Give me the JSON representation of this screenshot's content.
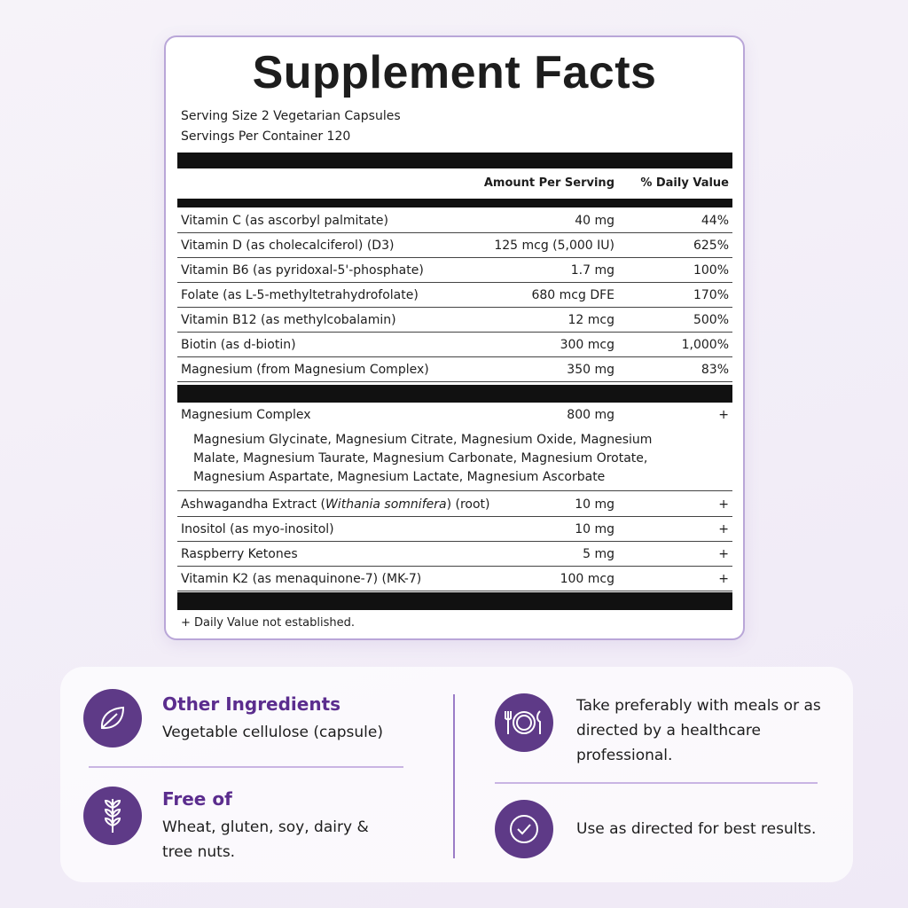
{
  "label": {
    "title": "Supplement Facts",
    "serving_size": "Serving Size 2 Vegetarian Capsules",
    "servings_per_container": "Servings Per Container 120",
    "headers": [
      "Amount Per Serving",
      "% Daily Value"
    ],
    "rows": [
      [
        "Vitamin C (as ascorbyl palmitate)",
        "40 mg",
        "44%"
      ],
      [
        "Vitamin D (as cholecalciferol) (D3)",
        "125 mcg (5,000 IU)",
        "625%"
      ],
      [
        "Vitamin B6 (as pyridoxal-5'-phosphate)",
        "1.7 mg",
        "100%"
      ],
      [
        "Folate (as L-5-methyltetrahydrofolate)",
        "680 mcg DFE",
        "170%"
      ],
      [
        "Vitamin B12 (as methylcobalamin)",
        "12 mcg",
        "500%"
      ],
      [
        "Biotin (as d-biotin)",
        "300 mcg",
        "1,000%"
      ],
      [
        "Magnesium (from Magnesium Complex)",
        "350 mg",
        "83%"
      ]
    ],
    "complex": {
      "name": "Magnesium Complex",
      "amount": "800 mg",
      "dv": "+",
      "detail": "Magnesium Glycinate, Magnesium Citrate, Magnesium Oxide, Magnesium Malate, Magnesium Taurate, Magnesium Carbonate, Magnesium Orotate, Magnesium Aspartate, Magnesium Lactate, Magnesium Ascorbate"
    },
    "other_rows": [
      [
        [
          "Ashwagandha Extract (",
          "Withania somnifera",
          ") (root)"
        ],
        "10 mg",
        "+"
      ],
      [
        "Inositol (as myo-inositol)",
        "10 mg",
        "+"
      ],
      [
        "Raspberry Ketones",
        "5 mg",
        "+"
      ],
      [
        "Vitamin K2 (as menaquinone-7) (MK-7)",
        "100 mcg",
        "+"
      ]
    ],
    "footnote": "+ Daily Value not established."
  },
  "info": {
    "other_ingredients": {
      "title": "Other Ingredients",
      "text": "Vegetable cellulose (capsule)"
    },
    "free_of": {
      "title": "Free of",
      "text": "Wheat, gluten, soy, dairy & tree nuts."
    },
    "take": "Take preferably with meals or as directed by a healthcare professional.",
    "use": "Use as directed for best results."
  }
}
